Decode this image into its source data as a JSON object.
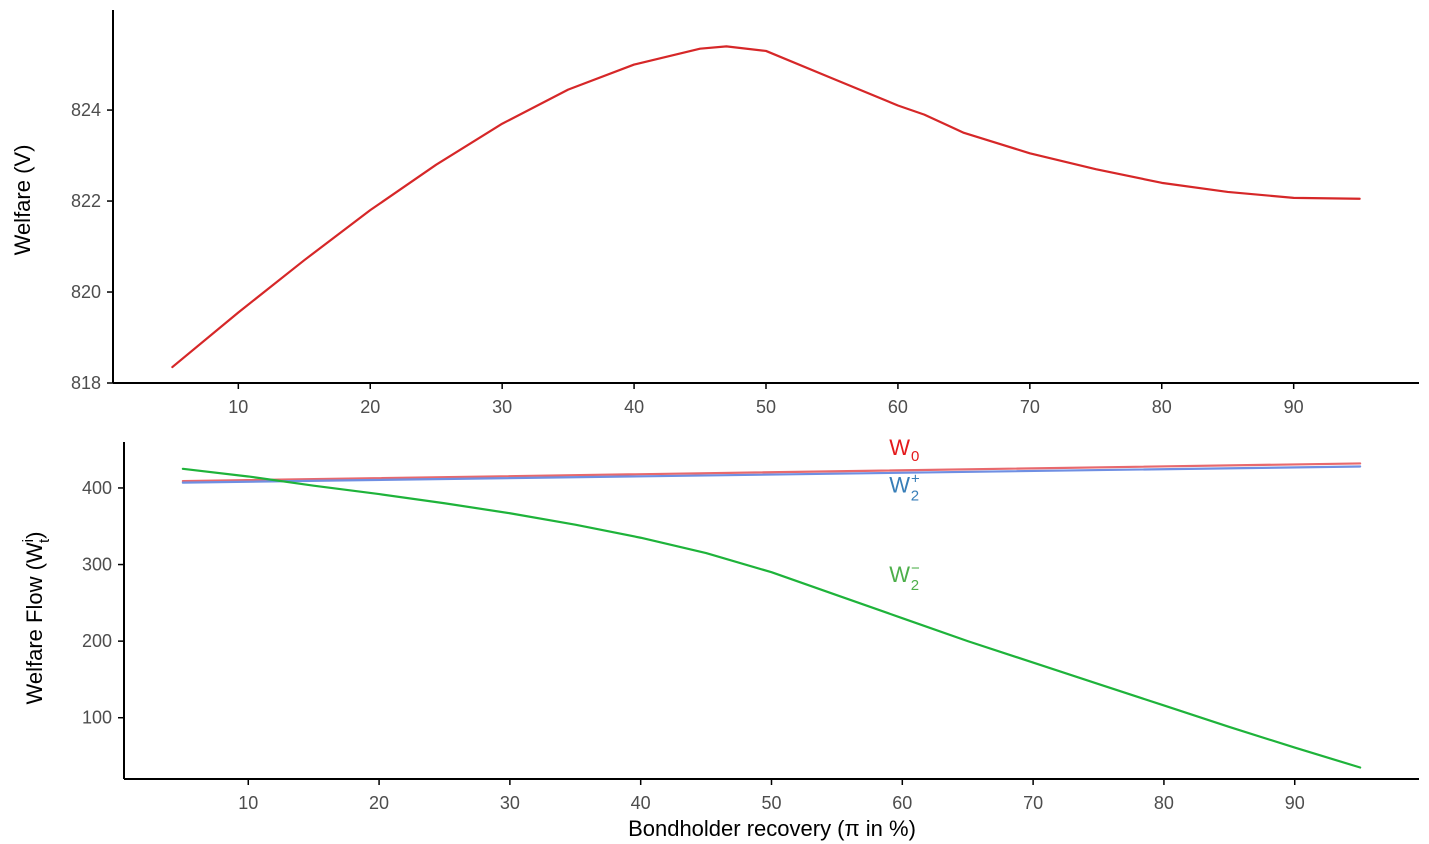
{
  "colors": {
    "background": "#ffffff",
    "axis": "#000000",
    "tick_text": "#4d4d4d"
  },
  "chart_data": [
    {
      "type": "line",
      "title": "",
      "xlabel": "",
      "ylabel": "Welfare (V)",
      "xlim": [
        0.5,
        99.5
      ],
      "ylim": [
        818,
        826.2
      ],
      "x_ticks": [
        10,
        20,
        30,
        40,
        50,
        60,
        70,
        80,
        90
      ],
      "y_ticks": [
        818,
        820,
        822,
        824
      ],
      "grid": false,
      "legend": "none",
      "series": [
        {
          "color": "#d62728",
          "x": [
            5,
            10,
            15,
            20,
            25,
            30,
            35,
            40,
            45,
            47,
            50,
            55,
            60,
            62,
            65,
            70,
            75,
            80,
            85,
            90,
            95
          ],
          "y": [
            818.35,
            819.55,
            820.7,
            821.8,
            822.8,
            823.7,
            824.45,
            825.0,
            825.35,
            825.4,
            825.3,
            824.7,
            824.1,
            823.9,
            823.5,
            823.05,
            822.7,
            822.4,
            822.2,
            822.07,
            822.05
          ]
        }
      ]
    },
    {
      "type": "line",
      "title": "",
      "xlabel": "Bondholder recovery (π in %)",
      "ylabel": "Welfare Flow (W",
      "ylabel_sub": "t",
      "ylabel_sup": "i",
      "ylabel_close": ")",
      "xlim": [
        0.5,
        99.5
      ],
      "ylim": [
        20,
        460
      ],
      "x_ticks": [
        10,
        20,
        30,
        40,
        50,
        60,
        70,
        80,
        90
      ],
      "y_ticks": [
        100,
        200,
        300,
        400
      ],
      "grid": false,
      "legend": "direct labels",
      "series": [
        {
          "name": "W",
          "name_sub": "0",
          "name_sup": "",
          "color": "#e8696d",
          "label_color": "#e41a1c",
          "label_at": [
            59,
            443
          ],
          "x": [
            5,
            95
          ],
          "y": [
            409,
            432
          ]
        },
        {
          "name": "W",
          "name_sub": "2",
          "name_sup": "+",
          "color": "#6f8fe3",
          "label_color": "#377eb8",
          "label_at": [
            59,
            394
          ],
          "x": [
            5,
            95
          ],
          "y": [
            407,
            428
          ]
        },
        {
          "name": "W",
          "name_sub": "2",
          "name_sup": "−",
          "color": "#1eb33a",
          "label_color": "#4daf4a",
          "label_at": [
            59,
            277
          ],
          "x": [
            5,
            10,
            15,
            20,
            25,
            30,
            35,
            40,
            45,
            50,
            55,
            60,
            65,
            70,
            75,
            80,
            85,
            90,
            95
          ],
          "y": [
            425,
            415,
            403,
            392,
            380,
            367,
            352,
            335,
            315,
            290,
            260,
            230,
            200,
            172,
            144,
            116,
            88,
            61,
            35
          ]
        }
      ]
    }
  ]
}
